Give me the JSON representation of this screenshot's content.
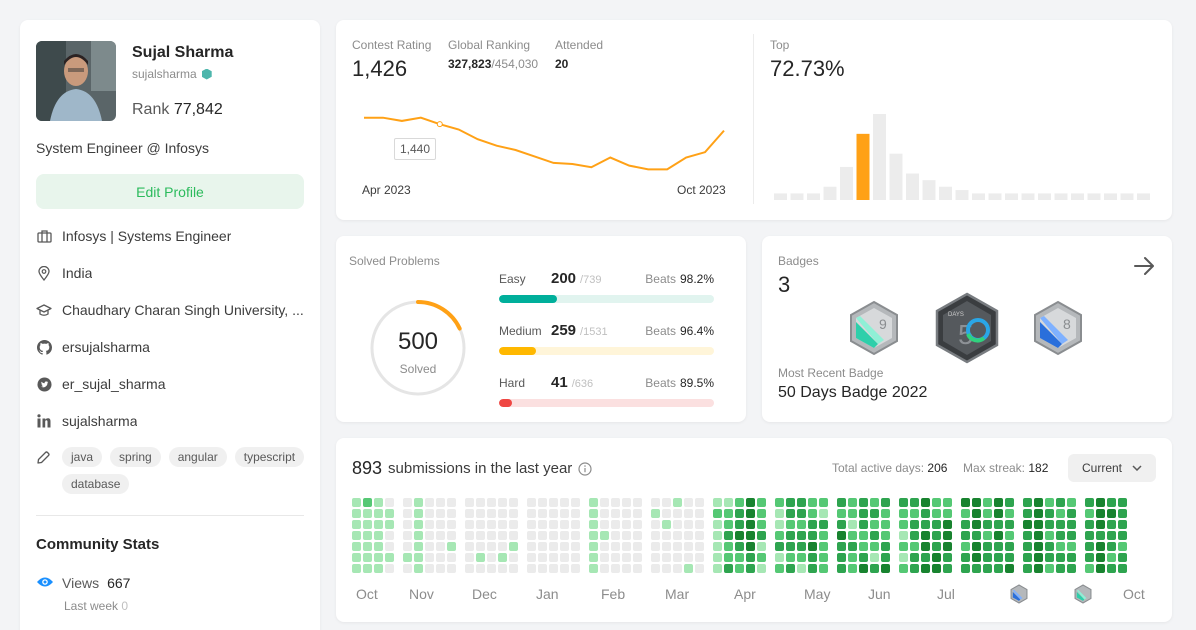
{
  "profile": {
    "name": "Sujal Sharma",
    "username": "sujalsharma",
    "rank_label": "Rank",
    "rank_value": "77,842",
    "bio": "System Engineer @ Infosys",
    "edit_label": "Edit Profile",
    "company": "Infosys | Systems Engineer",
    "location": "India",
    "university": "Chaudhary Charan Singh University, ...",
    "github": "ersujalsharma",
    "twitter": "er_sujal_sharma",
    "linkedin": "sujalsharma",
    "skills": [
      "java",
      "spring",
      "angular",
      "typescript",
      "database"
    ]
  },
  "community": {
    "title": "Community Stats",
    "views_label": "Views",
    "views_value": "667",
    "last_week_label": "Last week",
    "last_week_value": "0"
  },
  "contest": {
    "rating_label": "Contest Rating",
    "rating_value": "1,426",
    "global_label": "Global Ranking",
    "global_value": "327,823",
    "global_total": "/454,030",
    "attended_label": "Attended",
    "attended_value": "20",
    "top_label": "Top",
    "top_value": "72.73%",
    "tooltip": "1,440",
    "x_start": "Apr 2023",
    "x_end": "Oct 2023"
  },
  "chart_data": [
    {
      "type": "line",
      "title": "Contest Rating",
      "x": [
        "Apr 2023",
        "",
        "",
        "",
        "",
        "",
        "",
        "",
        "",
        "",
        "",
        "",
        "",
        "",
        "",
        "",
        "",
        "",
        "",
        "Oct 2023"
      ],
      "series": [
        {
          "values": [
            1452,
            1452,
            1446,
            1452,
            1440,
            1430,
            1412,
            1400,
            1392,
            1380,
            1368,
            1366,
            1360,
            1378,
            1363,
            1356,
            1356,
            1378,
            1388,
            1428
          ]
        }
      ],
      "color": "#ffa116"
    },
    {
      "type": "bar",
      "title": "Top",
      "values": [
        1,
        1,
        1,
        2,
        5,
        10,
        13,
        7,
        4,
        3,
        2,
        1.5,
        1,
        1,
        1,
        1,
        1,
        1,
        1,
        1,
        1,
        1,
        1
      ],
      "highlight_index": 5,
      "highlight_color": "#ffa116",
      "base_color": "#ececec"
    }
  ],
  "solved": {
    "title": "Solved Problems",
    "total": "500",
    "total_label": "Solved",
    "total_fraction": 0.18,
    "easy": {
      "label": "Easy",
      "count": "200",
      "total": "/739",
      "beats_label": "Beats",
      "beats": "98.2%",
      "fraction": 0.27,
      "color": "#00af9b",
      "track": "#e1f4ef"
    },
    "medium": {
      "label": "Medium",
      "count": "259",
      "total": "/1531",
      "beats_label": "Beats",
      "beats": "96.4%",
      "fraction": 0.17,
      "color": "#ffb800",
      "track": "#fff5d9"
    },
    "hard": {
      "label": "Hard",
      "count": "41",
      "total": "/636",
      "beats_label": "Beats",
      "beats": "89.5%",
      "fraction": 0.06,
      "color": "#ef4743",
      "track": "#fbe0e0"
    }
  },
  "badges": {
    "title": "Badges",
    "count": "3",
    "recent_label": "Most Recent Badge",
    "recent_value": "50 Days Badge 2022",
    "icons": [
      "sep-badge-icon",
      "50-days-badge-icon",
      "aug-badge-icon"
    ]
  },
  "submissions": {
    "count": "893",
    "text": "submissions in the last year",
    "active_label": "Total active days:",
    "active_value": "206",
    "streak_label": "Max streak:",
    "streak_value": "182",
    "period": "Current",
    "months": [
      "Oct",
      "Nov",
      "Dec",
      "Jan",
      "Feb",
      "Mar",
      "Apr",
      "May",
      "Jun",
      "Jul",
      "Oct"
    ],
    "colors": [
      "#ebebeb",
      "#a6e7b4",
      "#55c874",
      "#2ea44f",
      "#18832f"
    ]
  }
}
